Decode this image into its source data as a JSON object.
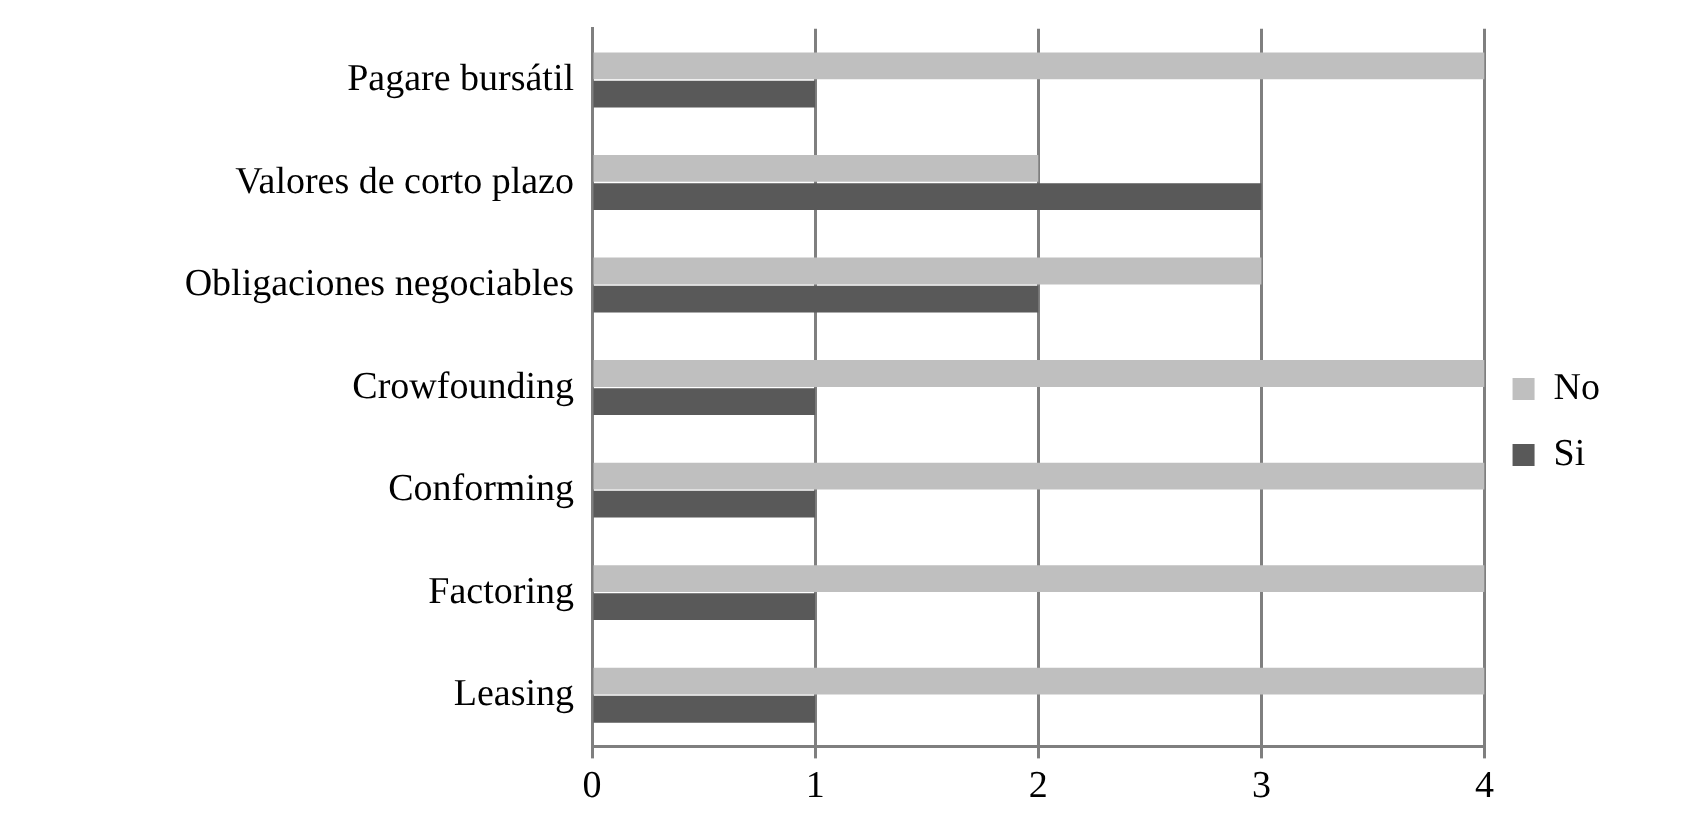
{
  "chart_data": {
    "type": "bar",
    "orientation": "horizontal",
    "categories": [
      "Pagare bursátil",
      "Valores de corto plazo",
      "Obligaciones negociables",
      "Crowfounding",
      "Conforming",
      "Factoring",
      "Leasing"
    ],
    "series": [
      {
        "name": "No",
        "color": "#bfbfbf",
        "values": [
          4,
          2,
          3,
          4,
          4,
          4,
          4
        ]
      },
      {
        "name": "Si",
        "color": "#595959",
        "values": [
          1,
          3,
          2,
          1,
          1,
          1,
          1
        ]
      }
    ],
    "xlim": [
      0,
      4
    ],
    "xticks": [
      0,
      1,
      2,
      3,
      4
    ],
    "grid": "x",
    "legend": "right"
  }
}
